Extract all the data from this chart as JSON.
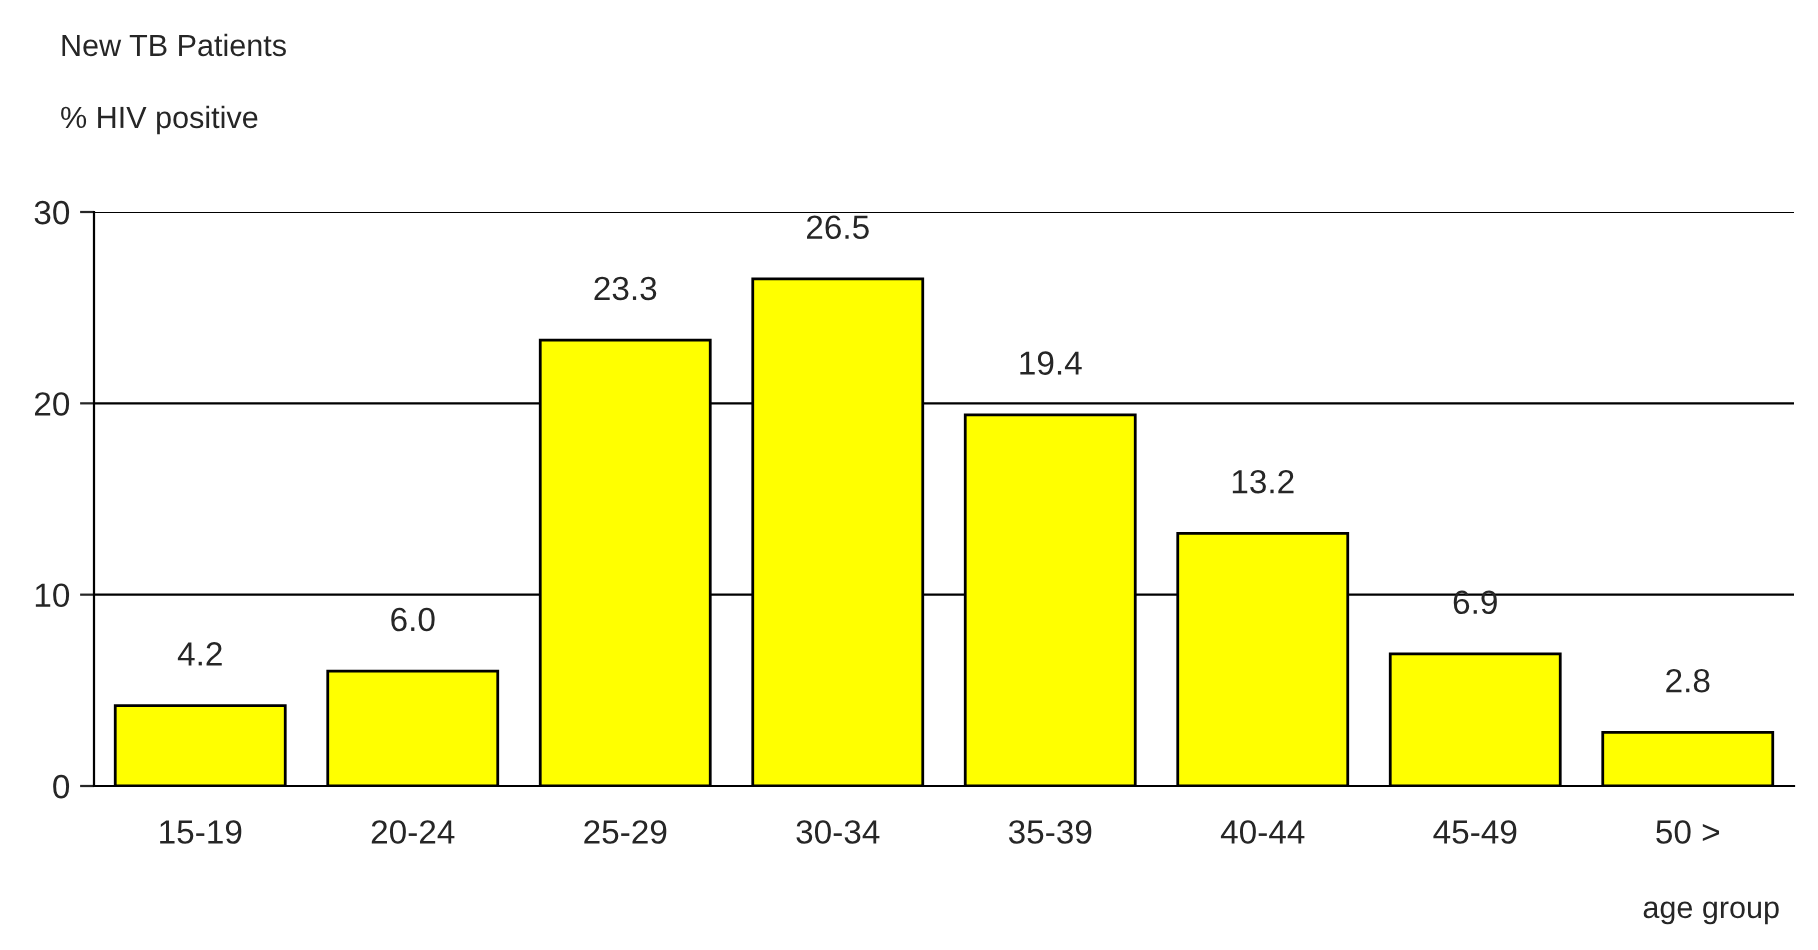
{
  "chart_data": {
    "type": "bar",
    "title": "New TB Patients",
    "ylabel": "% HIV positive",
    "xlabel": "age group",
    "categories": [
      "15-19",
      "20-24",
      "25-29",
      "30-34",
      "35-39",
      "40-44",
      "45-49",
      "50 >"
    ],
    "values": [
      4.2,
      6.0,
      23.3,
      26.5,
      19.4,
      13.2,
      6.9,
      2.8
    ],
    "value_labels": [
      "4.2",
      "6.0",
      "23.3",
      "26.5",
      "19.4",
      "13.2",
      "6.9",
      "2.8"
    ],
    "color": "#ffff00",
    "ylim": [
      0,
      30
    ],
    "yticks": [
      0,
      10,
      20,
      30
    ],
    "grid": "y",
    "legend": false
  }
}
